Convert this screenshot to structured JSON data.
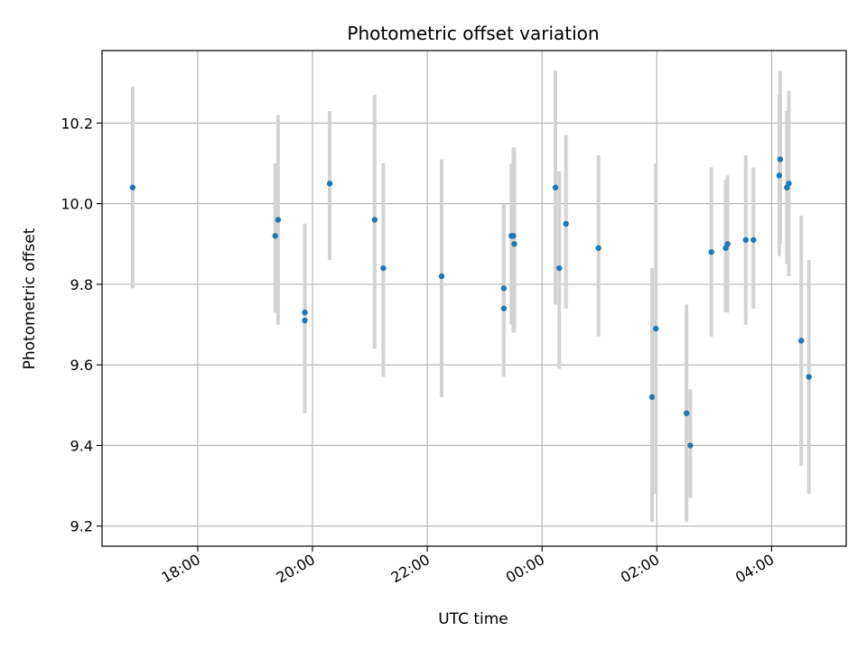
{
  "chart_data": {
    "type": "scatter",
    "title": "Photometric offset variation",
    "xlabel": "UTC time",
    "ylabel": "Photometric offset",
    "x_is_time": true,
    "xlim": [
      "16:20",
      "05:18"
    ],
    "ylim": [
      9.15,
      10.38
    ],
    "xticks": [
      {
        "time": "18:00",
        "label": "18:00"
      },
      {
        "time": "20:00",
        "label": "20:00"
      },
      {
        "time": "22:00",
        "label": "22:00"
      },
      {
        "time": "00:00",
        "label": "00:00"
      },
      {
        "time": "02:00",
        "label": "02:00"
      },
      {
        "time": "04:00",
        "label": "04:00"
      }
    ],
    "yticks": [
      {
        "value": 9.2,
        "label": "9.2"
      },
      {
        "value": 9.4,
        "label": "9.4"
      },
      {
        "value": 9.6,
        "label": "9.6"
      },
      {
        "value": 9.8,
        "label": "9.8"
      },
      {
        "value": 10.0,
        "label": "10.0"
      },
      {
        "value": 10.2,
        "label": "10.2"
      }
    ],
    "grid": true,
    "marker_color": "#1f77b4",
    "errorbar_color": "#d3d3d3",
    "series": [
      {
        "points": [
          {
            "time": "16:52",
            "y": 10.04,
            "ylow": 9.79,
            "yhigh": 10.29
          },
          {
            "time": "19:21",
            "y": 9.92,
            "ylow": 9.73,
            "yhigh": 10.1
          },
          {
            "time": "19:24",
            "y": 9.96,
            "ylow": 9.7,
            "yhigh": 10.22
          },
          {
            "time": "19:52",
            "y": 9.73,
            "ylow": 9.48,
            "yhigh": 9.95
          },
          {
            "time": "19:52",
            "y": 9.71,
            "ylow": 9.48,
            "yhigh": 9.95
          },
          {
            "time": "20:18",
            "y": 10.05,
            "ylow": 9.86,
            "yhigh": 10.23
          },
          {
            "time": "21:05",
            "y": 9.96,
            "ylow": 9.64,
            "yhigh": 10.27
          },
          {
            "time": "21:14",
            "y": 9.84,
            "ylow": 9.57,
            "yhigh": 10.1
          },
          {
            "time": "22:15",
            "y": 9.82,
            "ylow": 9.52,
            "yhigh": 10.11
          },
          {
            "time": "23:20",
            "y": 9.79,
            "ylow": 9.57,
            "yhigh": 10.0
          },
          {
            "time": "23:20",
            "y": 9.74,
            "ylow": 9.57,
            "yhigh": 10.0
          },
          {
            "time": "23:28",
            "y": 9.92,
            "ylow": 9.7,
            "yhigh": 10.1
          },
          {
            "time": "23:30",
            "y": 9.92,
            "ylow": 9.68,
            "yhigh": 10.14
          },
          {
            "time": "23:31",
            "y": 9.9,
            "ylow": 9.68,
            "yhigh": 10.14
          },
          {
            "time": "00:14",
            "y": 10.04,
            "ylow": 9.75,
            "yhigh": 10.33
          },
          {
            "time": "00:18",
            "y": 9.84,
            "ylow": 9.59,
            "yhigh": 10.08
          },
          {
            "time": "00:25",
            "y": 9.95,
            "ylow": 9.74,
            "yhigh": 10.17
          },
          {
            "time": "00:59",
            "y": 9.89,
            "ylow": 9.67,
            "yhigh": 10.12
          },
          {
            "time": "01:55",
            "y": 9.52,
            "ylow": 9.21,
            "yhigh": 9.84
          },
          {
            "time": "01:59",
            "y": 9.69,
            "ylow": 9.28,
            "yhigh": 10.1
          },
          {
            "time": "02:31",
            "y": 9.48,
            "ylow": 9.21,
            "yhigh": 9.75
          },
          {
            "time": "02:35",
            "y": 9.4,
            "ylow": 9.27,
            "yhigh": 9.54
          },
          {
            "time": "02:57",
            "y": 9.88,
            "ylow": 9.67,
            "yhigh": 10.09
          },
          {
            "time": "03:12",
            "y": 9.89,
            "ylow": 9.73,
            "yhigh": 10.06
          },
          {
            "time": "03:14",
            "y": 9.9,
            "ylow": 9.73,
            "yhigh": 10.07
          },
          {
            "time": "03:33",
            "y": 9.91,
            "ylow": 9.7,
            "yhigh": 10.12
          },
          {
            "time": "03:41",
            "y": 9.91,
            "ylow": 9.74,
            "yhigh": 10.09
          },
          {
            "time": "04:08",
            "y": 10.07,
            "ylow": 9.87,
            "yhigh": 10.27
          },
          {
            "time": "04:09",
            "y": 10.11,
            "ylow": 9.9,
            "yhigh": 10.33
          },
          {
            "time": "04:16",
            "y": 10.04,
            "ylow": 9.85,
            "yhigh": 10.23
          },
          {
            "time": "04:18",
            "y": 10.05,
            "ylow": 9.82,
            "yhigh": 10.28
          },
          {
            "time": "04:31",
            "y": 9.66,
            "ylow": 9.35,
            "yhigh": 9.97
          },
          {
            "time": "04:39",
            "y": 9.57,
            "ylow": 9.28,
            "yhigh": 9.86
          }
        ]
      }
    ]
  }
}
